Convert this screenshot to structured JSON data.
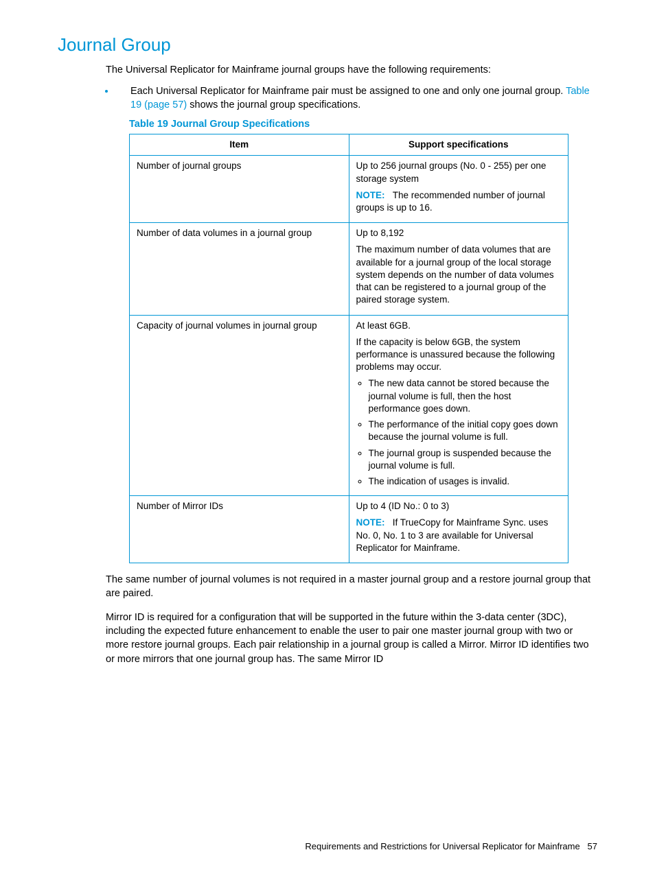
{
  "colors": {
    "accent": "#0096d6",
    "text": "#000000",
    "background": "#ffffff",
    "table_border": "#0096d6"
  },
  "heading": "Journal Group",
  "intro": "The Universal Replicator for Mainframe journal groups have the following requirements:",
  "bullet_main": "Each Universal Replicator for Mainframe pair must be assigned to one and only one journal group. ",
  "bullet_xref": "Table 19 (page 57)",
  "bullet_tail": " shows the journal group specifications.",
  "table_caption": "Table 19 Journal Group Specifications",
  "table": {
    "headers": [
      "Item",
      "Support specifications"
    ],
    "rows": [
      {
        "item": "Number of journal groups",
        "spec": {
          "p1": "Up to 256 journal groups (No. 0 - 255) per one storage system",
          "note_label": "NOTE:",
          "note_text": "The recommended number of journal groups is up to 16."
        }
      },
      {
        "item": "Number of data volumes in a journal group",
        "spec": {
          "p1": "Up to 8,192",
          "p2": "The maximum number of data volumes that are available for a journal group of the local storage system depends on the number of data volumes that can be registered to a journal group of the paired storage system."
        }
      },
      {
        "item": "Capacity of journal volumes in journal group",
        "spec": {
          "p1": "At least 6GB.",
          "p2": "If the capacity is below 6GB, the system performance is unassured because the following problems may occur.",
          "list": [
            "The new data cannot be stored because the journal volume is full, then the host performance goes down.",
            "The performance of the initial copy goes down because the journal volume is full.",
            "The journal group is suspended because the journal volume is full.",
            "The indication of usages is invalid."
          ]
        }
      },
      {
        "item": "Number of Mirror IDs",
        "spec": {
          "p1": "Up to 4 (ID No.: 0 to 3)",
          "note_label": "NOTE:",
          "note_text": "If TrueCopy for Mainframe Sync. uses No. 0, No. 1 to 3 are available for Universal Replicator for Mainframe."
        }
      }
    ]
  },
  "after1": "The same number of journal volumes is not required in a master journal group and a restore journal group that are paired.",
  "after2": "Mirror ID is required for a configuration that will be supported in the future within the 3-data center (3DC), including the expected future enhancement to enable the user to pair one master journal group with two or more restore journal groups. Each pair relationship in a journal group is called a Mirror. Mirror ID identifies two or more mirrors that one journal group has. The same Mirror ID",
  "footer_text": "Requirements and Restrictions for Universal Replicator for Mainframe",
  "page_number": "57"
}
